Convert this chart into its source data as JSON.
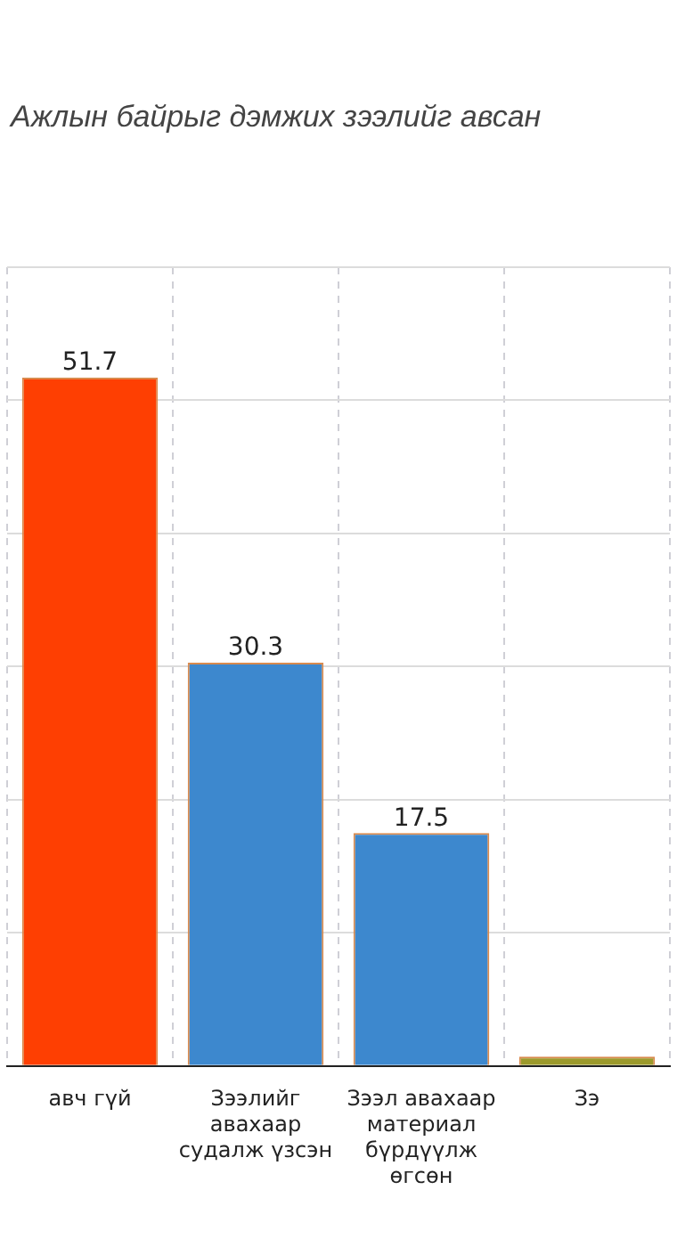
{
  "chart_data": {
    "type": "bar",
    "title": "Ажлын байрыг дэмжих зээлийг авсан",
    "categories": [
      "авч гүй",
      "Зээлийг авахаар судалж үзсэн",
      "Зээл авахаар материал бүрдүүлж өгсөн",
      "Зэ"
    ],
    "values": [
      51.7,
      30.3,
      17.5,
      0.7
    ],
    "colors": [
      "#fe3f02",
      "#3d88ce",
      "#3d88ce",
      "#9c9a2c"
    ],
    "value_labels": [
      "51.7",
      "30.3",
      "17.5",
      null
    ],
    "ylim": [
      0,
      60
    ],
    "yticks": [
      {
        "value": 0,
        "label": null
      },
      {
        "value": 10,
        "label": null
      },
      {
        "value": 20,
        "label": null
      },
      {
        "value": 30,
        "label": null
      },
      {
        "value": 40,
        "label": null
      },
      {
        "value": 50,
        "label": null
      },
      {
        "value": 60,
        "label": null
      }
    ],
    "grid": true,
    "tick_labels": "x"
  }
}
